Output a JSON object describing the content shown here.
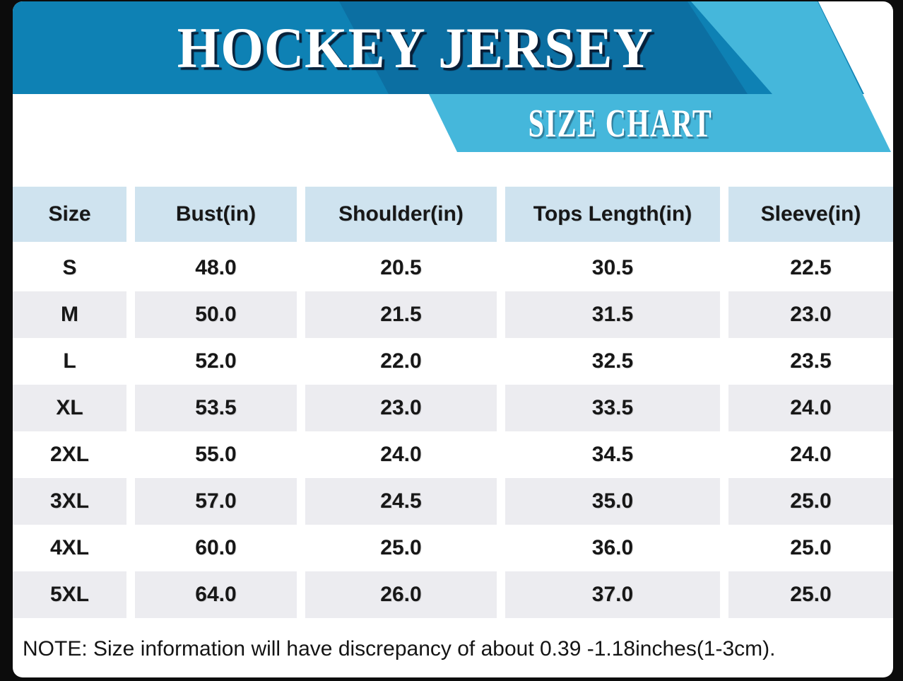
{
  "banner": {
    "title": "HOCKEY JERSEY",
    "subtitle": "SIZE CHART"
  },
  "table": {
    "columns": [
      "Size",
      "Bust(in)",
      "Shoulder(in)",
      "Tops Length(in)",
      "Sleeve(in)"
    ],
    "rows": [
      {
        "size": "S",
        "values": [
          "48.0",
          "20.5",
          "30.5",
          "22.5"
        ]
      },
      {
        "size": "M",
        "values": [
          "50.0",
          "21.5",
          "31.5",
          "23.0"
        ]
      },
      {
        "size": "L",
        "values": [
          "52.0",
          "22.0",
          "32.5",
          "23.5"
        ]
      },
      {
        "size": "XL",
        "values": [
          "53.5",
          "23.0",
          "33.5",
          "24.0"
        ]
      },
      {
        "size": "2XL",
        "values": [
          "55.0",
          "24.0",
          "34.5",
          "24.0"
        ]
      },
      {
        "size": "3XL",
        "values": [
          "57.0",
          "24.5",
          "35.0",
          "25.0"
        ]
      },
      {
        "size": "4XL",
        "values": [
          "60.0",
          "25.0",
          "36.0",
          "25.0"
        ]
      },
      {
        "size": "5XL",
        "values": [
          "64.0",
          "26.0",
          "37.0",
          "25.0"
        ]
      }
    ]
  },
  "note": {
    "text": "NOTE: Size information will have discrepancy of about 0.39 -1.18inches(1-3cm)."
  },
  "colors": {
    "banner_blue": "#0e81b4",
    "banner_stripe_blue": "#0c6fa2",
    "ribbon_light_blue": "#45b7db",
    "header_cell_blue": "#cfe3ef",
    "row_stripe_gray": "#ececf0",
    "frame_black": "#0c0c0c",
    "title_white": "#ffffff",
    "text_black": "#171717"
  }
}
